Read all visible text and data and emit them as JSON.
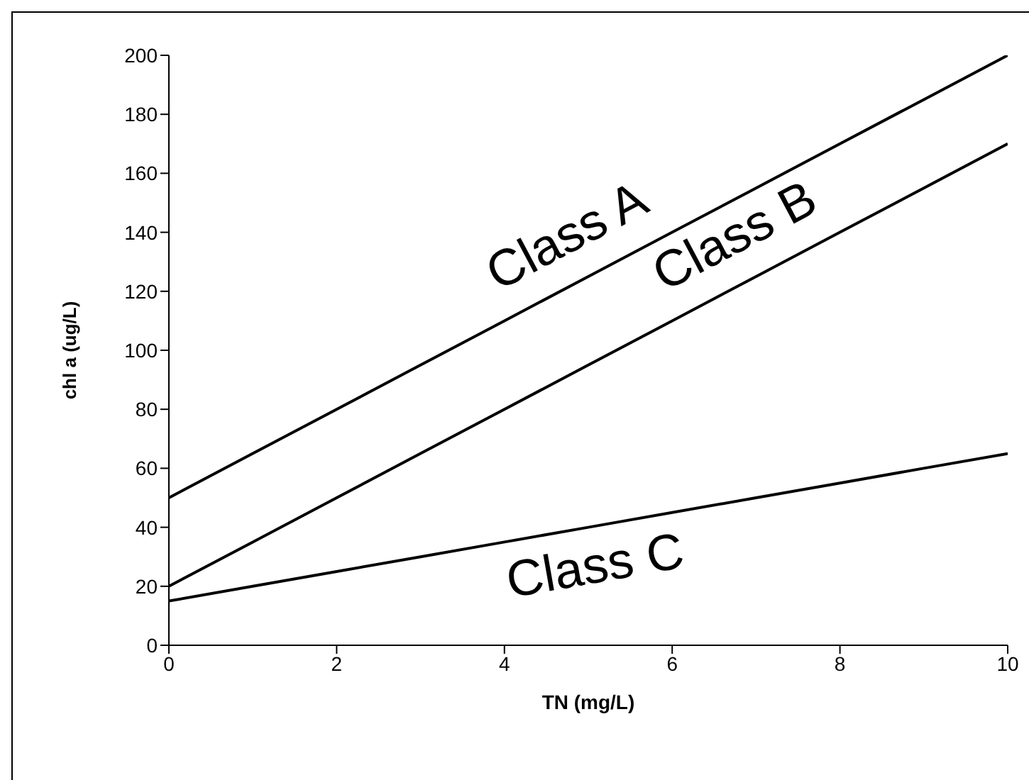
{
  "chart_data": {
    "type": "line",
    "xlabel": "TN (mg/L)",
    "ylabel": "chl a (ug/L)",
    "x": [
      0,
      1,
      2,
      3,
      4,
      5,
      6,
      7,
      8,
      9,
      10
    ],
    "series": [
      {
        "name": "Class A",
        "color": "#000000",
        "values": [
          50,
          65,
          80,
          95,
          110,
          125,
          140,
          155,
          170,
          185,
          200
        ]
      },
      {
        "name": "Class B",
        "color": "#000000",
        "values": [
          20,
          35,
          50,
          65,
          80,
          95,
          110,
          125,
          140,
          155,
          170
        ]
      },
      {
        "name": "Class C",
        "color": "#000000",
        "values": [
          15,
          20,
          25,
          30,
          35,
          40,
          45,
          50,
          55,
          60,
          65
        ]
      }
    ],
    "xlim": [
      0,
      10
    ],
    "xticks": [
      0,
      2,
      4,
      6,
      8,
      10
    ],
    "ylim": [
      0,
      200
    ],
    "yticks": [
      0,
      20,
      40,
      60,
      80,
      100,
      120,
      140,
      160,
      180,
      200
    ],
    "grid": false,
    "legend": false,
    "marker": "none",
    "line_style": "solid"
  }
}
